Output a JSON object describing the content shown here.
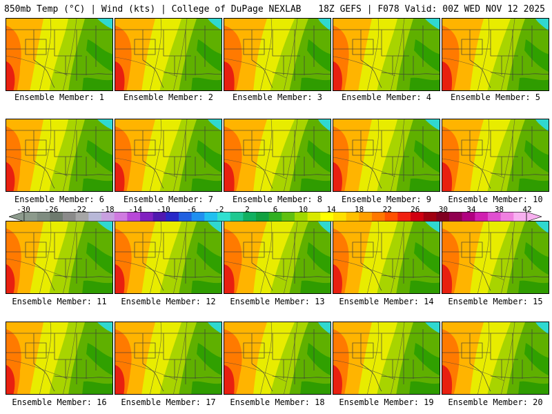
{
  "header": {
    "left": "850mb Temp (°C) | Wind (kts) | College of DuPage NEXLAB",
    "right": "18Z GEFS | F078 Valid: 00Z WED NOV 12 2025"
  },
  "panels": [
    "Ensemble Member: 1",
    "Ensemble Member: 2",
    "Ensemble Member: 3",
    "Ensemble Member: 4",
    "Ensemble Member: 5",
    "Ensemble Member: 6",
    "Ensemble Member: 7",
    "Ensemble Member: 8",
    "Ensemble Member: 9",
    "Ensemble Member: 10",
    "Ensemble Member: 11",
    "Ensemble Member: 12",
    "Ensemble Member: 13",
    "Ensemble Member: 14",
    "Ensemble Member: 15",
    "Ensemble Member: 16",
    "Ensemble Member: 17",
    "Ensemble Member: 18",
    "Ensemble Member: 19",
    "Ensemble Member: 20"
  ],
  "colorbar": {
    "ticks": [
      "-30",
      "-26",
      "-22",
      "-18",
      "-14",
      "-10",
      "-6",
      "-2",
      "2",
      "6",
      "10",
      "14",
      "18",
      "22",
      "26",
      "30",
      "34",
      "38",
      "42"
    ],
    "colors": [
      "#8c9a8c",
      "#7e8c80",
      "#6e7a6e",
      "#8a8a8a",
      "#a6a6a6",
      "#b8b8d8",
      "#c8a0e0",
      "#d07ae0",
      "#b848d8",
      "#8020c0",
      "#5018b0",
      "#2828c8",
      "#2060e0",
      "#2090f0",
      "#20c0f0",
      "#30e0d0",
      "#20c890",
      "#10b060",
      "#10a040",
      "#30b020",
      "#60c010",
      "#a0d800",
      "#d8e800",
      "#ffff00",
      "#ffe000",
      "#ffc000",
      "#ffa000",
      "#ff7800",
      "#ff5000",
      "#f02010",
      "#d00010",
      "#a00010",
      "#800020",
      "#900050",
      "#b00080",
      "#d020b0",
      "#e050d0",
      "#f080e0",
      "#f8b0f0"
    ]
  }
}
